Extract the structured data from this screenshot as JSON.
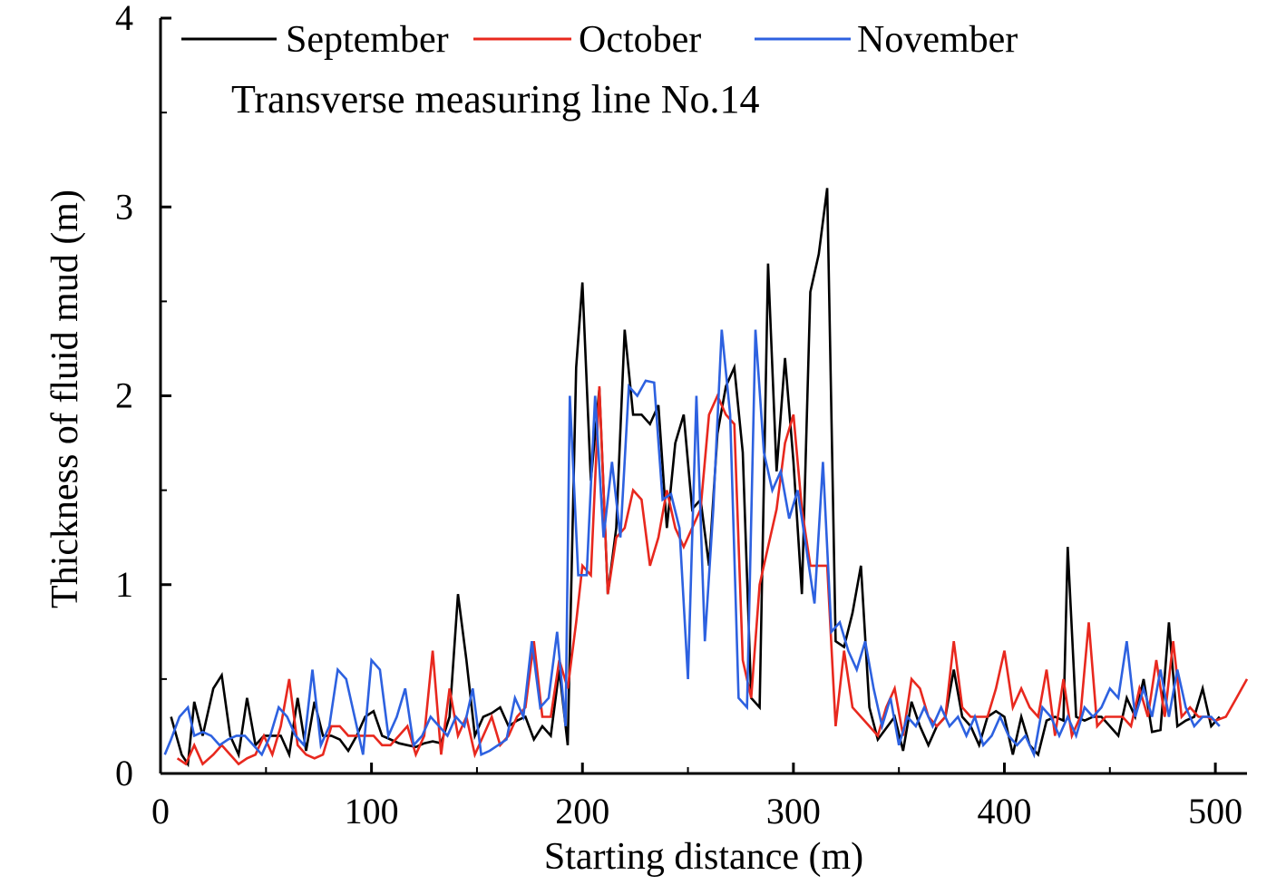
{
  "chart_data": {
    "type": "line",
    "title": "",
    "annotation": "Transverse measuring line No.14",
    "xlabel": "Starting distance (m)",
    "ylabel": "Thickness of fluid mud (m)",
    "xlim": [
      0,
      515
    ],
    "ylim": [
      0,
      4
    ],
    "xticks": [
      0,
      100,
      200,
      300,
      400,
      500
    ],
    "yticks": [
      0,
      1,
      2,
      3,
      4
    ],
    "xtick_labels": [
      "0",
      "100",
      "200",
      "300",
      "400",
      "500"
    ],
    "ytick_labels": [
      "0",
      "1",
      "2",
      "3",
      "4"
    ],
    "grid": false,
    "legend_position": "top",
    "series": [
      {
        "name": "September",
        "color": "#000000",
        "x": [
          5,
          10,
          13,
          16,
          20,
          25,
          29,
          33,
          37,
          41,
          45,
          49,
          53,
          57,
          61,
          65,
          69,
          73,
          77,
          81,
          85,
          89,
          93,
          97,
          101,
          105,
          109,
          113,
          117,
          121,
          125,
          129,
          133,
          137,
          141,
          145,
          149,
          153,
          157,
          161,
          165,
          169,
          173,
          177,
          181,
          185,
          189,
          193,
          197,
          200,
          204,
          208,
          212,
          216,
          220,
          224,
          228,
          232,
          236,
          240,
          244,
          248,
          252,
          256,
          260,
          264,
          268,
          272,
          276,
          280,
          284,
          288,
          292,
          296,
          300,
          304,
          308,
          312,
          316,
          320,
          324,
          328,
          332,
          336,
          340,
          344,
          348,
          352,
          356,
          360,
          364,
          368,
          372,
          376,
          380,
          384,
          388,
          392,
          396,
          400,
          404,
          408,
          412,
          416,
          420,
          424,
          428,
          430,
          434,
          438,
          442,
          446,
          450,
          454,
          458,
          462,
          466,
          470,
          474,
          478,
          482,
          486,
          490,
          494,
          498,
          502
        ],
        "values": [
          0.3,
          0.1,
          0.05,
          0.38,
          0.2,
          0.45,
          0.52,
          0.2,
          0.1,
          0.4,
          0.15,
          0.2,
          0.2,
          0.2,
          0.1,
          0.4,
          0.12,
          0.38,
          0.2,
          0.2,
          0.18,
          0.12,
          0.2,
          0.3,
          0.33,
          0.2,
          0.18,
          0.16,
          0.15,
          0.14,
          0.16,
          0.17,
          0.16,
          0.3,
          0.95,
          0.6,
          0.2,
          0.3,
          0.32,
          0.35,
          0.25,
          0.28,
          0.3,
          0.18,
          0.25,
          0.2,
          0.55,
          0.15,
          2.15,
          2.6,
          1.55,
          2.04,
          0.95,
          1.3,
          2.35,
          1.9,
          1.9,
          1.85,
          1.95,
          1.3,
          1.75,
          1.9,
          1.4,
          1.45,
          1.1,
          1.8,
          2.05,
          2.15,
          1.7,
          0.4,
          0.35,
          2.7,
          1.6,
          2.2,
          1.65,
          0.95,
          2.55,
          2.75,
          3.1,
          0.7,
          0.67,
          0.85,
          1.1,
          0.35,
          0.18,
          0.24,
          0.3,
          0.12,
          0.38,
          0.25,
          0.15,
          0.25,
          0.3,
          0.55,
          0.3,
          0.25,
          0.15,
          0.3,
          0.33,
          0.3,
          0.1,
          0.3,
          0.15,
          0.1,
          0.28,
          0.3,
          0.28,
          1.2,
          0.3,
          0.28,
          0.3,
          0.3,
          0.25,
          0.2,
          0.4,
          0.3,
          0.5,
          0.22,
          0.23,
          0.8,
          0.25,
          0.28,
          0.3,
          0.45,
          0.25,
          0.3
        ]
      },
      {
        "name": "October",
        "color": "#e8281e",
        "x": [
          8,
          12,
          16,
          20,
          25,
          29,
          33,
          37,
          41,
          45,
          49,
          53,
          57,
          61,
          65,
          69,
          73,
          77,
          81,
          85,
          89,
          93,
          97,
          101,
          105,
          109,
          113,
          117,
          121,
          125,
          129,
          133,
          137,
          141,
          145,
          149,
          153,
          157,
          161,
          165,
          169,
          173,
          177,
          181,
          185,
          189,
          193,
          197,
          200,
          204,
          208,
          212,
          216,
          220,
          224,
          228,
          232,
          236,
          240,
          244,
          248,
          252,
          256,
          260,
          264,
          268,
          272,
          276,
          280,
          284,
          288,
          292,
          296,
          300,
          304,
          308,
          312,
          316,
          320,
          324,
          328,
          332,
          336,
          340,
          344,
          348,
          352,
          356,
          360,
          364,
          368,
          372,
          376,
          380,
          384,
          388,
          392,
          396,
          400,
          404,
          408,
          412,
          416,
          420,
          424,
          428,
          432,
          436,
          440,
          444,
          448,
          452,
          456,
          460,
          464,
          468,
          472,
          476,
          480,
          484,
          488,
          492,
          496,
          500,
          505,
          510,
          515
        ],
        "values": [
          0.08,
          0.05,
          0.15,
          0.05,
          0.1,
          0.15,
          0.1,
          0.05,
          0.08,
          0.1,
          0.2,
          0.1,
          0.25,
          0.5,
          0.15,
          0.1,
          0.08,
          0.1,
          0.25,
          0.25,
          0.2,
          0.2,
          0.2,
          0.2,
          0.15,
          0.15,
          0.2,
          0.25,
          0.1,
          0.2,
          0.65,
          0.1,
          0.45,
          0.2,
          0.3,
          0.1,
          0.2,
          0.3,
          0.15,
          0.2,
          0.3,
          0.35,
          0.7,
          0.3,
          0.3,
          0.6,
          0.45,
          0.8,
          1.1,
          1.05,
          2.05,
          0.95,
          1.25,
          1.3,
          1.5,
          1.45,
          1.1,
          1.25,
          1.5,
          1.3,
          1.2,
          1.3,
          1.4,
          1.9,
          2.0,
          1.9,
          1.85,
          0.6,
          0.4,
          1.0,
          1.2,
          1.4,
          1.75,
          1.9,
          1.4,
          1.1,
          1.1,
          1.1,
          0.25,
          0.65,
          0.35,
          0.3,
          0.25,
          0.2,
          0.35,
          0.45,
          0.2,
          0.5,
          0.45,
          0.3,
          0.25,
          0.3,
          0.7,
          0.35,
          0.3,
          0.3,
          0.3,
          0.45,
          0.65,
          0.35,
          0.45,
          0.35,
          0.3,
          0.55,
          0.2,
          0.5,
          0.2,
          0.3,
          0.8,
          0.25,
          0.3,
          0.3,
          0.3,
          0.25,
          0.45,
          0.3,
          0.6,
          0.3,
          0.7,
          0.3,
          0.35,
          0.3,
          0.3,
          0.28,
          0.3,
          0.4,
          0.5
        ]
      },
      {
        "name": "November",
        "color": "#2d61e0",
        "x": [
          2,
          5,
          9,
          13,
          16,
          20,
          24,
          28,
          32,
          36,
          40,
          44,
          48,
          52,
          56,
          60,
          64,
          68,
          72,
          76,
          80,
          84,
          88,
          92,
          96,
          100,
          104,
          108,
          112,
          116,
          120,
          124,
          128,
          132,
          136,
          140,
          144,
          148,
          152,
          156,
          160,
          164,
          168,
          172,
          176,
          180,
          184,
          188,
          192,
          194,
          198,
          202,
          206,
          210,
          214,
          218,
          222,
          226,
          230,
          234,
          238,
          242,
          246,
          250,
          254,
          258,
          262,
          266,
          270,
          274,
          278,
          282,
          286,
          290,
          294,
          298,
          302,
          306,
          310,
          314,
          318,
          322,
          326,
          330,
          334,
          338,
          342,
          346,
          350,
          354,
          358,
          362,
          366,
          370,
          374,
          378,
          382,
          386,
          390,
          394,
          398,
          402,
          406,
          410,
          414,
          418,
          422,
          426,
          430,
          434,
          438,
          442,
          446,
          450,
          454,
          458,
          462,
          466,
          470,
          474,
          478,
          482,
          486,
          490,
          494,
          498,
          502
        ],
        "values": [
          0.1,
          0.18,
          0.3,
          0.35,
          0.2,
          0.22,
          0.2,
          0.15,
          0.18,
          0.2,
          0.2,
          0.15,
          0.1,
          0.2,
          0.35,
          0.3,
          0.2,
          0.15,
          0.55,
          0.15,
          0.25,
          0.55,
          0.5,
          0.3,
          0.1,
          0.6,
          0.55,
          0.2,
          0.3,
          0.45,
          0.15,
          0.2,
          0.3,
          0.25,
          0.2,
          0.3,
          0.25,
          0.45,
          0.1,
          0.12,
          0.15,
          0.18,
          0.4,
          0.3,
          0.7,
          0.35,
          0.4,
          0.75,
          0.25,
          2.0,
          1.05,
          1.05,
          2.0,
          1.25,
          1.65,
          1.25,
          2.05,
          2.0,
          2.08,
          2.07,
          1.45,
          1.48,
          1.3,
          0.5,
          2.0,
          0.7,
          1.4,
          2.35,
          1.9,
          0.4,
          0.35,
          2.35,
          1.7,
          1.5,
          1.6,
          1.35,
          1.5,
          1.2,
          0.9,
          1.65,
          0.75,
          0.8,
          0.65,
          0.55,
          0.7,
          0.45,
          0.25,
          0.4,
          0.15,
          0.3,
          0.25,
          0.35,
          0.25,
          0.35,
          0.25,
          0.3,
          0.2,
          0.3,
          0.15,
          0.2,
          0.3,
          0.2,
          0.15,
          0.2,
          0.1,
          0.35,
          0.3,
          0.2,
          0.3,
          0.2,
          0.35,
          0.3,
          0.35,
          0.45,
          0.4,
          0.7,
          0.3,
          0.45,
          0.3,
          0.55,
          0.3,
          0.55,
          0.35,
          0.25,
          0.3,
          0.3,
          0.25
        ]
      }
    ]
  }
}
